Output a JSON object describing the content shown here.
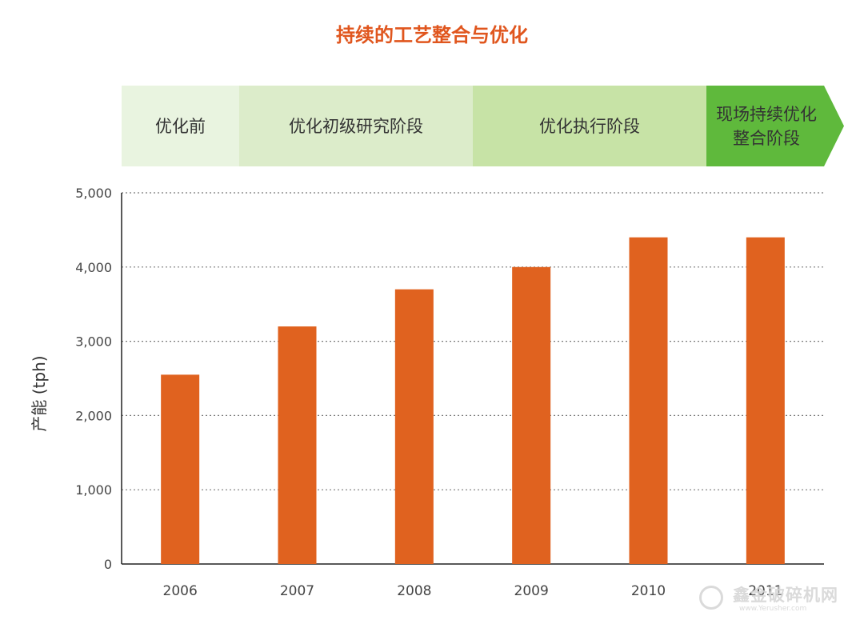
{
  "title": "持续的工艺整合与优化",
  "phases": [
    {
      "label": "优化前",
      "color": "#e9f4e0"
    },
    {
      "label": "优化初级研究阶段",
      "color": "#dcecca"
    },
    {
      "label": "优化执行阶段",
      "color": "#c7e3a6"
    },
    {
      "label": "现场持续优化整合阶段",
      "color": "#5fb93c"
    }
  ],
  "chart_data": {
    "type": "bar",
    "title": "",
    "xlabel": "",
    "ylabel": "产能 (tph)",
    "categories": [
      "2006",
      "2007",
      "2008",
      "2009",
      "2010",
      "2011"
    ],
    "values": [
      2550,
      3200,
      3700,
      4000,
      4400,
      4400
    ],
    "ylim": [
      0,
      5000
    ],
    "yticks": [
      0,
      1000,
      2000,
      3000,
      4000,
      5000
    ],
    "ytick_labels": [
      "0",
      "1,000",
      "2,000",
      "3,000",
      "4,000",
      "5,000"
    ],
    "grid": true,
    "bar_color": "#e0621f"
  },
  "watermark": {
    "text": "鑫金破碎机网",
    "subtext": "www.Yerusher.com"
  }
}
